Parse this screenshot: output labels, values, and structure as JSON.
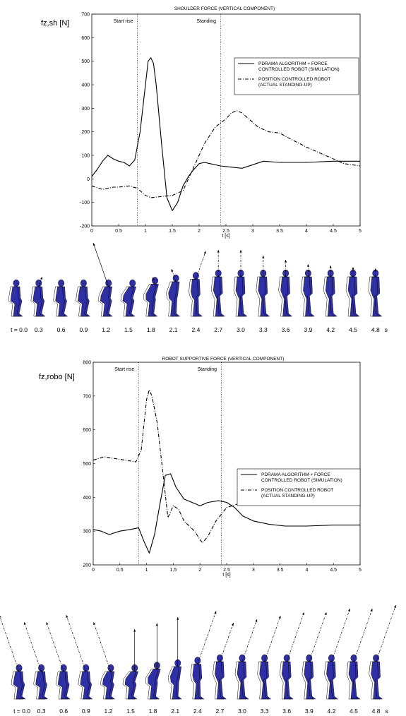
{
  "chart_data": [
    {
      "type": "line",
      "title": "SHOULDER FORCE (VERTICAL COMPONENT)",
      "ylabel": "fz,sh [N]",
      "xlabel": "t [s]",
      "xlim": [
        0,
        5
      ],
      "ylim": [
        -200,
        700
      ],
      "xticks": [
        "0",
        "0.5",
        "1",
        "1.5",
        "2",
        "2.5",
        "3",
        "3.5",
        "4",
        "4.5",
        "5"
      ],
      "yticks": [
        "-200",
        "-100",
        "0",
        "100",
        "200",
        "300",
        "400",
        "500",
        "600",
        "700"
      ],
      "grid": false,
      "annotations": [
        {
          "text": "Start rise",
          "x": 0.85
        },
        {
          "text": "Standing",
          "x": 2.4
        }
      ],
      "legend_position": "top-right",
      "series": [
        {
          "name": "PDRAMA ALGORITHM + FORCE CONTROLLED ROBOT (SIMULATION)",
          "style": "solid",
          "x": [
            0,
            0.1,
            0.2,
            0.3,
            0.4,
            0.5,
            0.6,
            0.7,
            0.8,
            0.9,
            1.0,
            1.05,
            1.1,
            1.15,
            1.2,
            1.3,
            1.4,
            1.5,
            1.6,
            1.7,
            1.8,
            1.9,
            2.0,
            2.1,
            2.2,
            2.4,
            2.6,
            2.8,
            3.0,
            3.2,
            3.5,
            4.0,
            4.5,
            5.0
          ],
          "y": [
            10,
            40,
            75,
            100,
            85,
            75,
            70,
            55,
            80,
            200,
            400,
            500,
            515,
            490,
            400,
            150,
            -80,
            -135,
            -100,
            -30,
            10,
            40,
            65,
            70,
            65,
            55,
            50,
            45,
            60,
            75,
            70,
            70,
            75,
            75
          ]
        },
        {
          "name": "POSITION CONTROLLED ROBOT (ACTUAL STANDING-UP)",
          "style": "dashdot",
          "x": [
            0,
            0.2,
            0.4,
            0.5,
            0.7,
            0.85,
            1.0,
            1.1,
            1.3,
            1.5,
            1.7,
            1.9,
            2.1,
            2.3,
            2.5,
            2.6,
            2.7,
            2.8,
            2.9,
            3.0,
            3.1,
            3.3,
            3.5,
            3.7,
            4.0,
            4.3,
            4.5,
            4.7,
            5.0
          ],
          "y": [
            -30,
            -45,
            -35,
            -35,
            -30,
            -40,
            -70,
            -80,
            -75,
            -70,
            -50,
            50,
            150,
            220,
            255,
            280,
            290,
            280,
            260,
            240,
            220,
            200,
            195,
            170,
            135,
            105,
            85,
            65,
            55
          ]
        }
      ]
    },
    {
      "type": "line",
      "title": "ROBOT SUPPORTIVE FORCE (VERTICAL COMPONENT)",
      "ylabel": "fz,robo [N]",
      "xlabel": "t [s]",
      "xlim": [
        0,
        5
      ],
      "ylim": [
        200,
        800
      ],
      "xticks": [
        "0",
        "0.5",
        "1",
        "1.5",
        "2",
        "2.5",
        "3",
        "3.5",
        "4",
        "4.5",
        "5"
      ],
      "yticks": [
        "200",
        "300",
        "400",
        "500",
        "600",
        "700",
        "800"
      ],
      "grid": false,
      "annotations": [
        {
          "text": "Start rise",
          "x": 0.85
        },
        {
          "text": "Standing",
          "x": 2.4
        }
      ],
      "legend_position": "right",
      "series": [
        {
          "name": "PDRAMA ALGORITHM + FORCE CONTROLLED ROBOT (SIMULATION)",
          "style": "solid",
          "x": [
            0,
            0.15,
            0.3,
            0.5,
            0.7,
            0.85,
            0.95,
            1.05,
            1.15,
            1.25,
            1.35,
            1.45,
            1.55,
            1.7,
            1.85,
            2.0,
            2.15,
            2.35,
            2.5,
            2.65,
            2.8,
            3.0,
            3.3,
            3.6,
            4.0,
            4.5,
            5.0
          ],
          "y": [
            305,
            300,
            290,
            300,
            305,
            310,
            270,
            235,
            290,
            380,
            465,
            470,
            430,
            395,
            385,
            375,
            385,
            390,
            385,
            370,
            345,
            330,
            320,
            315,
            315,
            318,
            318
          ]
        },
        {
          "name": "POSITION CONTROLLED ROBOT (ACTUAL STANDING-UP)",
          "style": "dashdot",
          "x": [
            0,
            0.2,
            0.4,
            0.6,
            0.8,
            0.9,
            1.0,
            1.05,
            1.1,
            1.2,
            1.3,
            1.4,
            1.5,
            1.6,
            1.7,
            1.8,
            1.9,
            2.0,
            2.05,
            2.15,
            2.3,
            2.5,
            2.7,
            2.9,
            3.1,
            3.4,
            3.7,
            4.0,
            4.3,
            4.6,
            5.0
          ],
          "y": [
            510,
            520,
            515,
            510,
            505,
            540,
            690,
            718,
            700,
            620,
            480,
            340,
            375,
            365,
            330,
            315,
            300,
            275,
            265,
            285,
            330,
            370,
            380,
            400,
            420,
            432,
            440,
            450,
            455,
            458,
            460
          ]
        }
      ]
    }
  ],
  "figure_strips": [
    {
      "times": [
        "t = 0.0",
        "0.3",
        "0.6",
        "0.9",
        "1.2",
        "1.5",
        "1.8",
        "2.1",
        "2.4",
        "2.7",
        "3.0",
        "3.3",
        "3.6",
        "3.9",
        "4.2",
        "4.5",
        "4.8"
      ],
      "unit": "s"
    },
    {
      "times": [
        "t = 0.0",
        "0.3",
        "0.6",
        "0.9",
        "1.2",
        "1.5",
        "1.8",
        "2.1",
        "2.4",
        "2.7",
        "3.0",
        "3.3",
        "3.6",
        "3.9",
        "4.2",
        "4.5",
        "4.8"
      ],
      "unit": "s"
    }
  ],
  "colors": {
    "figure_fill": "#2f2fa6",
    "line": "#000000"
  }
}
